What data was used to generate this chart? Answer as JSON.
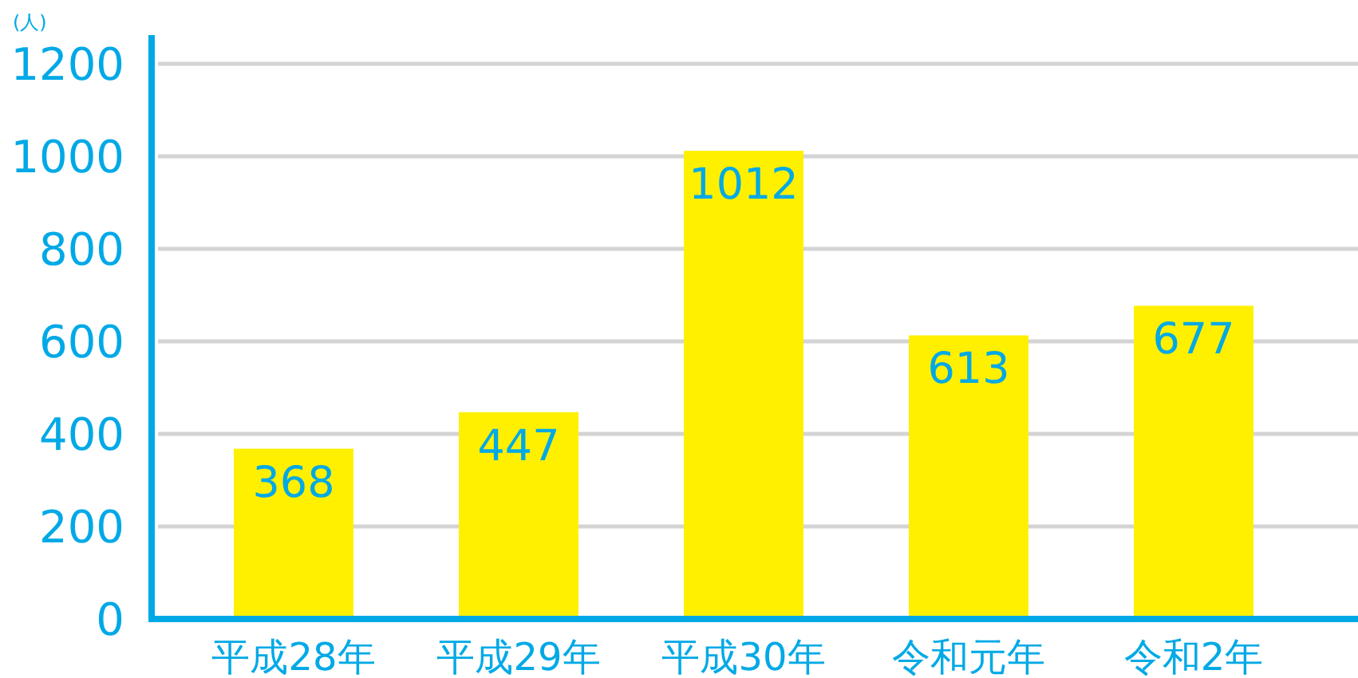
{
  "chart_data": {
    "type": "bar",
    "ylabel": "(人)",
    "categories": [
      "平成28年",
      "平成29年",
      "平成30年",
      "令和元年",
      "令和2年"
    ],
    "values": [
      368,
      447,
      1012,
      613,
      677
    ],
    "color": "#fff000",
    "ylim": [
      0,
      1200
    ],
    "yticks": [
      0,
      200,
      400,
      600,
      800,
      1000,
      1200
    ],
    "grid": "y",
    "data_labels": true
  }
}
